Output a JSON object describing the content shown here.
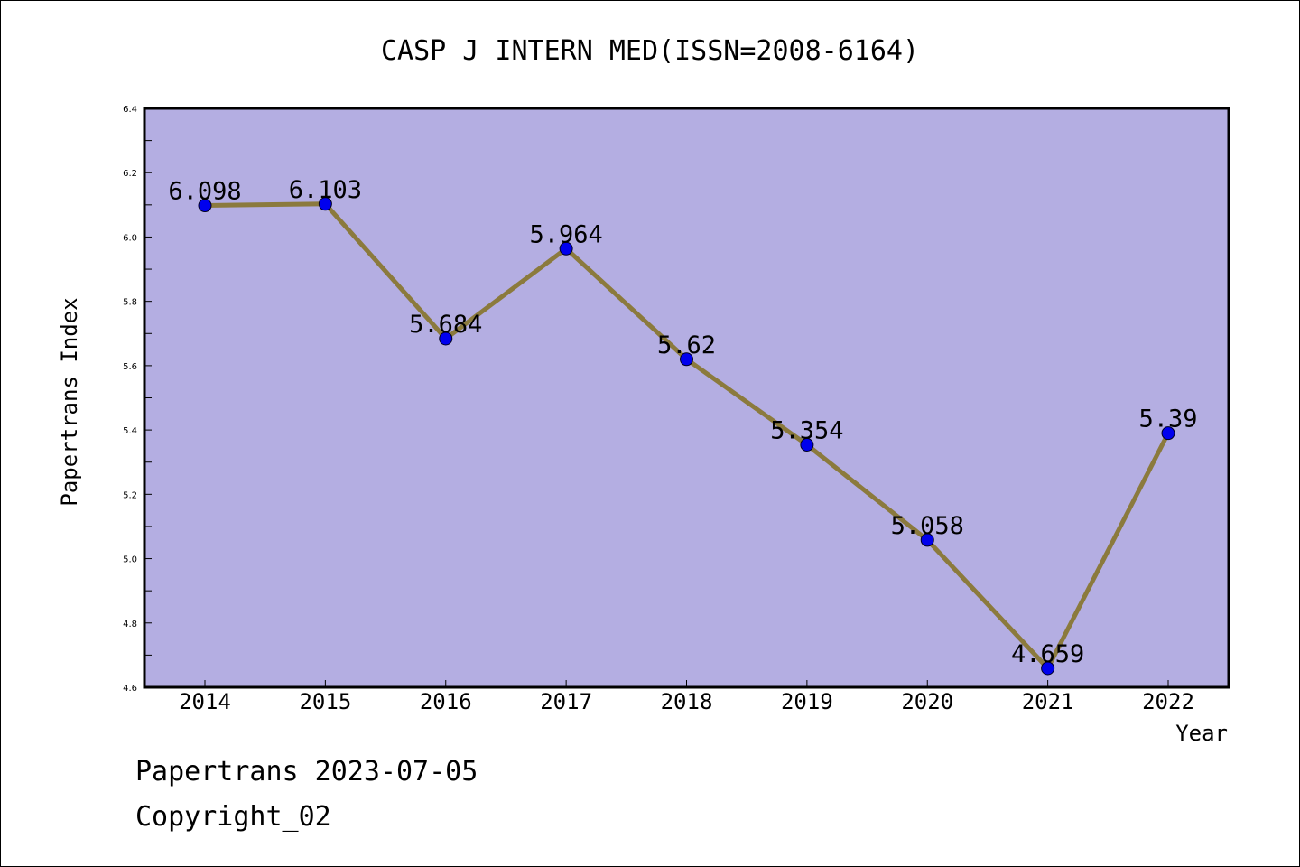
{
  "chart_data": {
    "type": "line",
    "title": "CASP J INTERN MED(ISSN=2008-6164)",
    "xlabel": "Year",
    "ylabel": "Papertrans Index",
    "categories": [
      "2014",
      "2015",
      "2016",
      "2017",
      "2018",
      "2019",
      "2020",
      "2021",
      "2022"
    ],
    "values": [
      6.098,
      6.103,
      5.684,
      5.964,
      5.62,
      5.354,
      5.058,
      4.659,
      5.39
    ],
    "data_labels": [
      "6.098",
      "6.103",
      "5.684",
      "5.964",
      "5.62",
      "5.354",
      "5.058",
      "4.659",
      "5.39"
    ],
    "ylim": [
      4.6,
      6.4
    ],
    "yticks": [
      "4.6",
      "4.8",
      "5.0",
      "5.2",
      "5.4",
      "5.6",
      "5.8",
      "6.0",
      "6.2",
      "6.4"
    ],
    "grid": false,
    "colors": {
      "plot_background": "#b4aee2",
      "line": "#8b7a3d",
      "marker": "#0000ee"
    }
  },
  "footer": {
    "line1": "Papertrans 2023-07-05",
    "line2": "Copyright_02"
  }
}
